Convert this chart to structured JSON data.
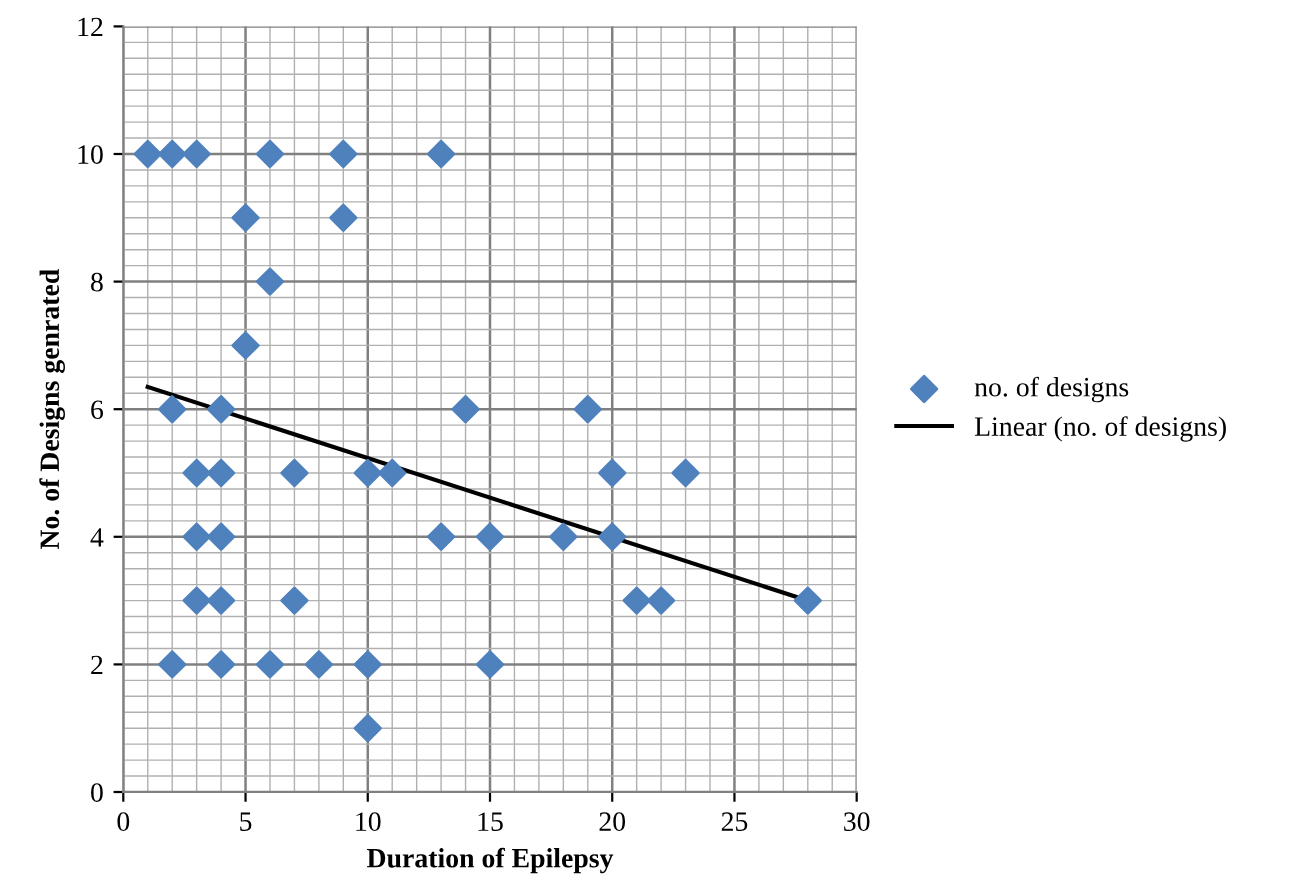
{
  "chart_data": {
    "type": "scatter",
    "xlabel": "Duration of Epilepsy",
    "ylabel": "No. of Designs genrated",
    "xlim": [
      0,
      30
    ],
    "xticks": [
      0,
      5,
      10,
      15,
      20,
      25,
      30
    ],
    "ylim": [
      0,
      12
    ],
    "yticks": [
      0,
      2,
      4,
      6,
      8,
      10,
      12
    ],
    "grid": true,
    "legend": "right",
    "series": [
      {
        "name": "no. of designs",
        "marker": "diamond",
        "color": "#4f81bd",
        "x": [
          1,
          2,
          3,
          6,
          9,
          13,
          5,
          9,
          6,
          5,
          2,
          4,
          14,
          19,
          3,
          4,
          7,
          10,
          11,
          20,
          23,
          3,
          4,
          13,
          15,
          18,
          20,
          3,
          4,
          7,
          21,
          22,
          28,
          2,
          4,
          6,
          8,
          10,
          15,
          10
        ],
        "values": [
          10,
          10,
          10,
          10,
          10,
          10,
          9,
          9,
          8,
          7,
          6,
          6,
          6,
          6,
          5,
          5,
          5,
          5,
          5,
          5,
          5,
          4,
          4,
          4,
          4,
          4,
          4,
          3,
          3,
          3,
          3,
          3,
          3,
          2,
          2,
          2,
          2,
          2,
          2,
          1
        ]
      },
      {
        "name": "Linear (no. of designs)",
        "type": "line",
        "marker": "none",
        "color": "#000000",
        "x": [
          1,
          28
        ],
        "values": [
          6.35,
          3.0
        ]
      }
    ]
  }
}
